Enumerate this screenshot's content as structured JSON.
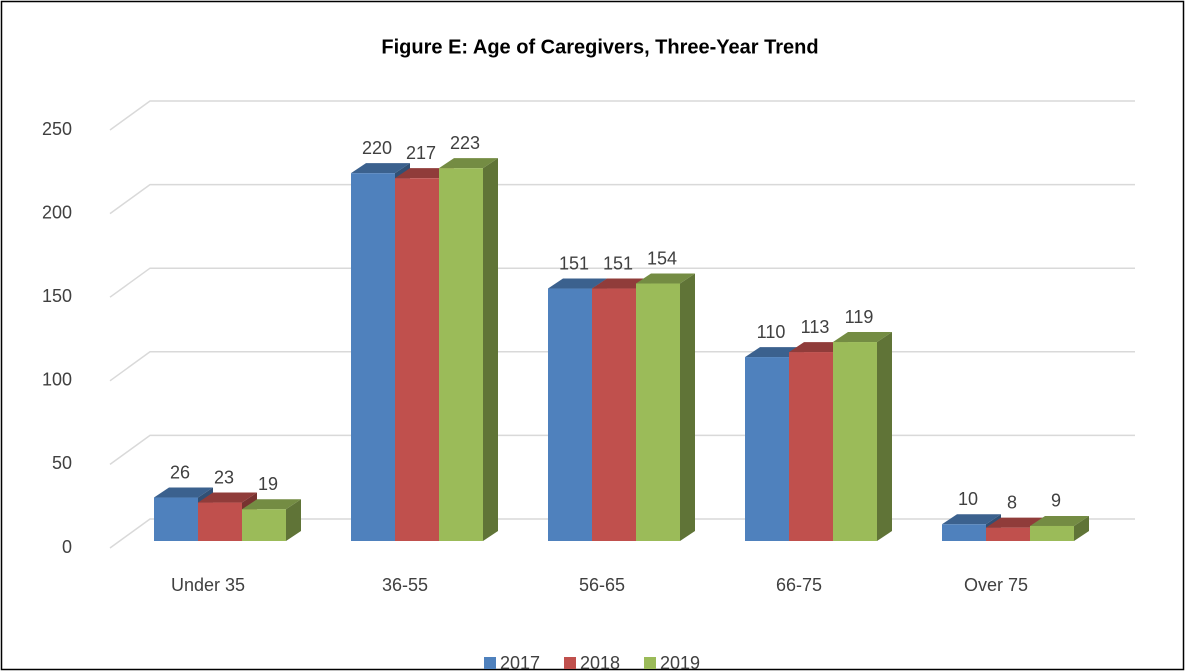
{
  "chart_data": {
    "type": "bar3d",
    "title": "Figure E: Age of Caregivers, Three-Year Trend",
    "categories": [
      "Under 35",
      "36-55",
      "56-65",
      "66-75",
      "Over 75"
    ],
    "series": [
      {
        "name": "2017",
        "color": "#4f81bd",
        "values": [
          26,
          220,
          151,
          110,
          10
        ]
      },
      {
        "name": "2018",
        "color": "#c0504d",
        "values": [
          23,
          217,
          151,
          113,
          8
        ]
      },
      {
        "name": "2019",
        "color": "#9bbb59",
        "values": [
          19,
          223,
          154,
          119,
          9
        ]
      }
    ],
    "ylim": [
      0,
      250
    ],
    "yticks": [
      0,
      50,
      100,
      150,
      200,
      250
    ],
    "grid": true,
    "legend": "bottom"
  }
}
